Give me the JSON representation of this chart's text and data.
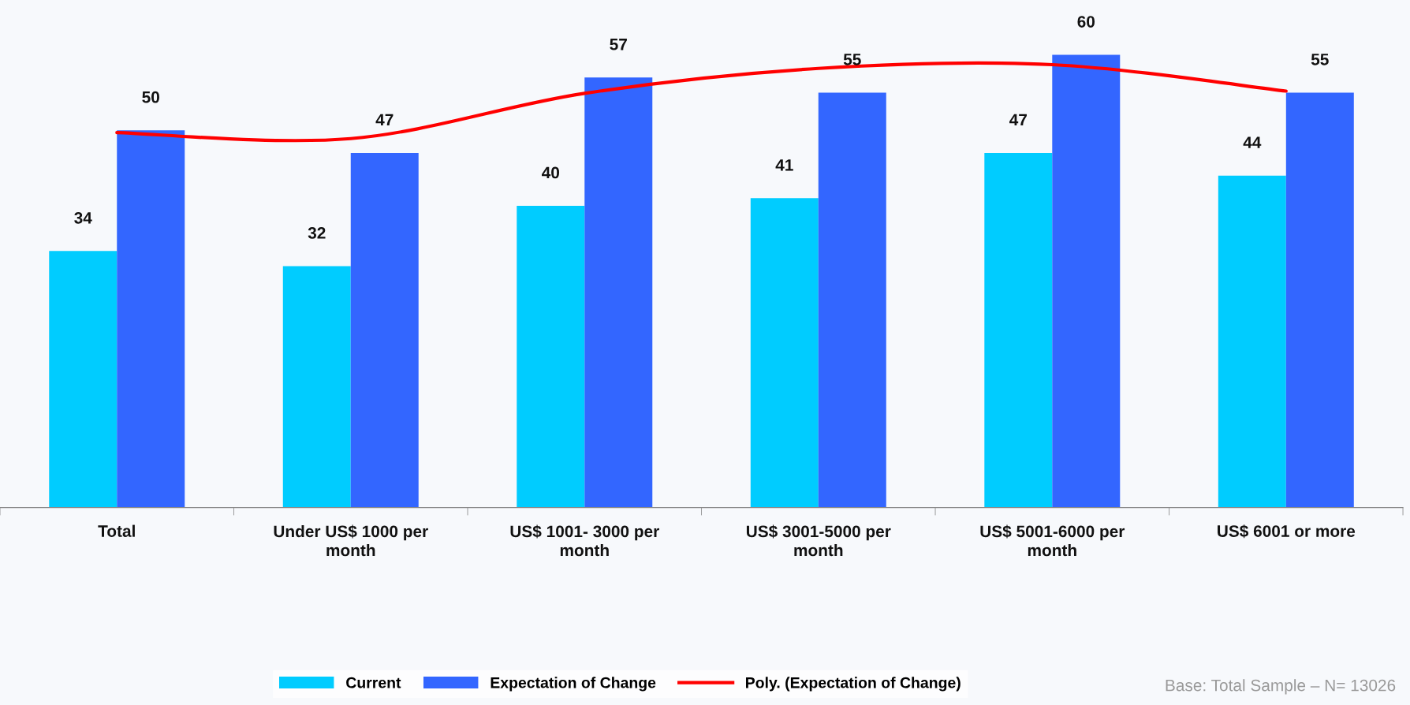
{
  "chart_data": {
    "type": "bar",
    "categories": [
      "Total",
      "Under US$ 1000 per month",
      "US$ 1001- 3000 per month",
      "US$ 3001-5000 per month",
      "US$ 5001-6000 per month",
      "US$ 6001 or more"
    ],
    "series": [
      {
        "name": "Current",
        "color": "#00ccff",
        "values": [
          34,
          32,
          40,
          41,
          47,
          44
        ],
        "value_labels": [
          "34",
          "32",
          "40",
          "41",
          "47",
          "44"
        ]
      },
      {
        "name": "Expectation of Change",
        "color": "#3366ff",
        "values": [
          50,
          47,
          57,
          55,
          60,
          55
        ],
        "value_labels": [
          "50",
          "47",
          "57",
          "55",
          "60",
          "55"
        ]
      },
      {
        "name": "Poly. (Expectation of Change)",
        "type": "line",
        "color": "#ff0000",
        "values": [
          49.7,
          48.9,
          54.9,
          58.2,
          58.7,
          55.2
        ]
      }
    ],
    "tick_labels": "x",
    "legend": "bottom",
    "marker": "none",
    "line_style": "solid",
    "annotations": [
      "Base: Total Sample – N= 13026"
    ]
  }
}
